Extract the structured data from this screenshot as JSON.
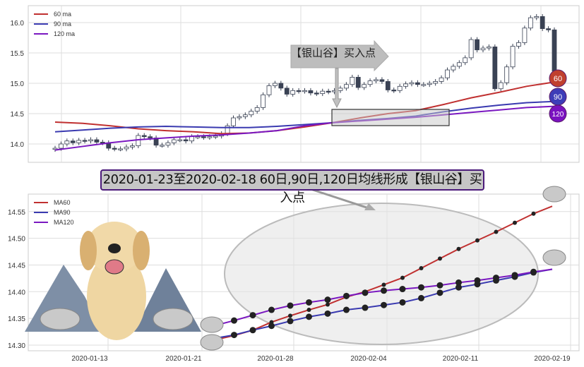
{
  "chart_data": [
    {
      "type": "candlestick",
      "title": "",
      "legend": [
        "60 ma",
        "90 ma",
        "120 ma"
      ],
      "legend_position": "top-left",
      "yticks": [
        "14.0",
        "14.5",
        "15.0",
        "15.5",
        "16.0"
      ],
      "ylim": [
        13.7,
        16.25
      ],
      "closes": [
        13.93,
        14.0,
        14.05,
        14.02,
        14.06,
        14.05,
        14.07,
        14.03,
        14.02,
        13.93,
        13.92,
        13.92,
        13.95,
        13.97,
        14.14,
        14.12,
        14.1,
        13.98,
        13.98,
        14.02,
        14.07,
        14.07,
        14.05,
        14.12,
        14.12,
        14.11,
        14.12,
        14.13,
        14.17,
        14.3,
        14.43,
        14.45,
        14.48,
        14.54,
        14.6,
        14.81,
        14.96,
        15.0,
        14.92,
        14.82,
        14.88,
        14.87,
        14.88,
        14.84,
        14.83,
        14.87,
        14.86,
        14.88,
        14.92,
        14.98,
        15.1,
        14.93,
        14.98,
        15.04,
        15.06,
        15.03,
        14.89,
        14.88,
        14.95,
        14.99,
        15.01,
        14.98,
        14.98,
        15.0,
        15.03,
        15.09,
        15.22,
        15.28,
        15.34,
        15.42,
        15.72,
        15.55,
        15.58,
        15.6,
        14.91,
        15.01,
        15.27,
        15.61,
        15.67,
        15.91,
        16.08,
        16.1,
        15.9,
        15.88,
        15.2
      ],
      "ma60": [
        14.36,
        14.34,
        14.3,
        14.25,
        14.22,
        14.2,
        14.17,
        14.18,
        14.22,
        14.28,
        14.35,
        14.43,
        14.5,
        14.55,
        14.65,
        14.76,
        14.85,
        14.95,
        15.02
      ],
      "ma90": [
        14.2,
        14.23,
        14.26,
        14.28,
        14.29,
        14.28,
        14.27,
        14.27,
        14.29,
        14.32,
        14.35,
        14.39,
        14.42,
        14.46,
        14.53,
        14.59,
        14.64,
        14.68,
        14.7
      ],
      "ma120": [
        13.9,
        13.96,
        14.02,
        14.07,
        14.1,
        14.13,
        14.15,
        14.18,
        14.22,
        14.3,
        14.35,
        14.38,
        14.41,
        14.44,
        14.48,
        14.52,
        14.56,
        14.6,
        14.62
      ],
      "annotation": "【银山谷】买入点",
      "end_labels": [
        "60",
        "90",
        "120"
      ]
    },
    {
      "type": "line",
      "title": "2020-01-23至2020-02-18 60日,90日,120日均线形成【银山谷】买入点",
      "legend": [
        "MA60",
        "MA90",
        "MA120"
      ],
      "legend_position": "top-left",
      "xticks": [
        "2020-01-13",
        "2020-01-21",
        "2020-01-28",
        "2020-02-04",
        "2020-02-11",
        "2020-02-19"
      ],
      "yticks": [
        "14.30",
        "14.35",
        "14.40",
        "14.45",
        "14.50",
        "14.55"
      ],
      "ylim": [
        14.295,
        14.585
      ],
      "series": [
        {
          "name": "MA60",
          "color": "#c03030",
          "values": [
            14.31,
            14.318,
            14.328,
            14.343,
            14.355,
            14.366,
            14.376,
            14.39,
            14.4,
            14.413,
            14.426,
            14.444,
            14.462,
            14.48,
            14.496,
            14.512,
            14.529,
            14.546,
            14.56
          ]
        },
        {
          "name": "MA90",
          "color": "#3a3ab0",
          "values": [
            14.313,
            14.319,
            14.328,
            14.336,
            14.345,
            14.353,
            14.359,
            14.366,
            14.37,
            14.375,
            14.38,
            14.388,
            14.398,
            14.408,
            14.414,
            14.421,
            14.428,
            14.436,
            14.442
          ]
        },
        {
          "name": "MA120",
          "color": "#7a18c0",
          "values": [
            14.337,
            14.346,
            14.356,
            14.366,
            14.374,
            14.38,
            14.385,
            14.392,
            14.398,
            14.402,
            14.405,
            14.408,
            14.412,
            14.417,
            14.421,
            14.426,
            14.431,
            14.437,
            14.442
          ]
        }
      ]
    }
  ],
  "colors": {
    "ma60": "#c03030",
    "ma90": "#3a3ab0",
    "ma120": "#7a18c0",
    "candle": "#3a4254"
  }
}
